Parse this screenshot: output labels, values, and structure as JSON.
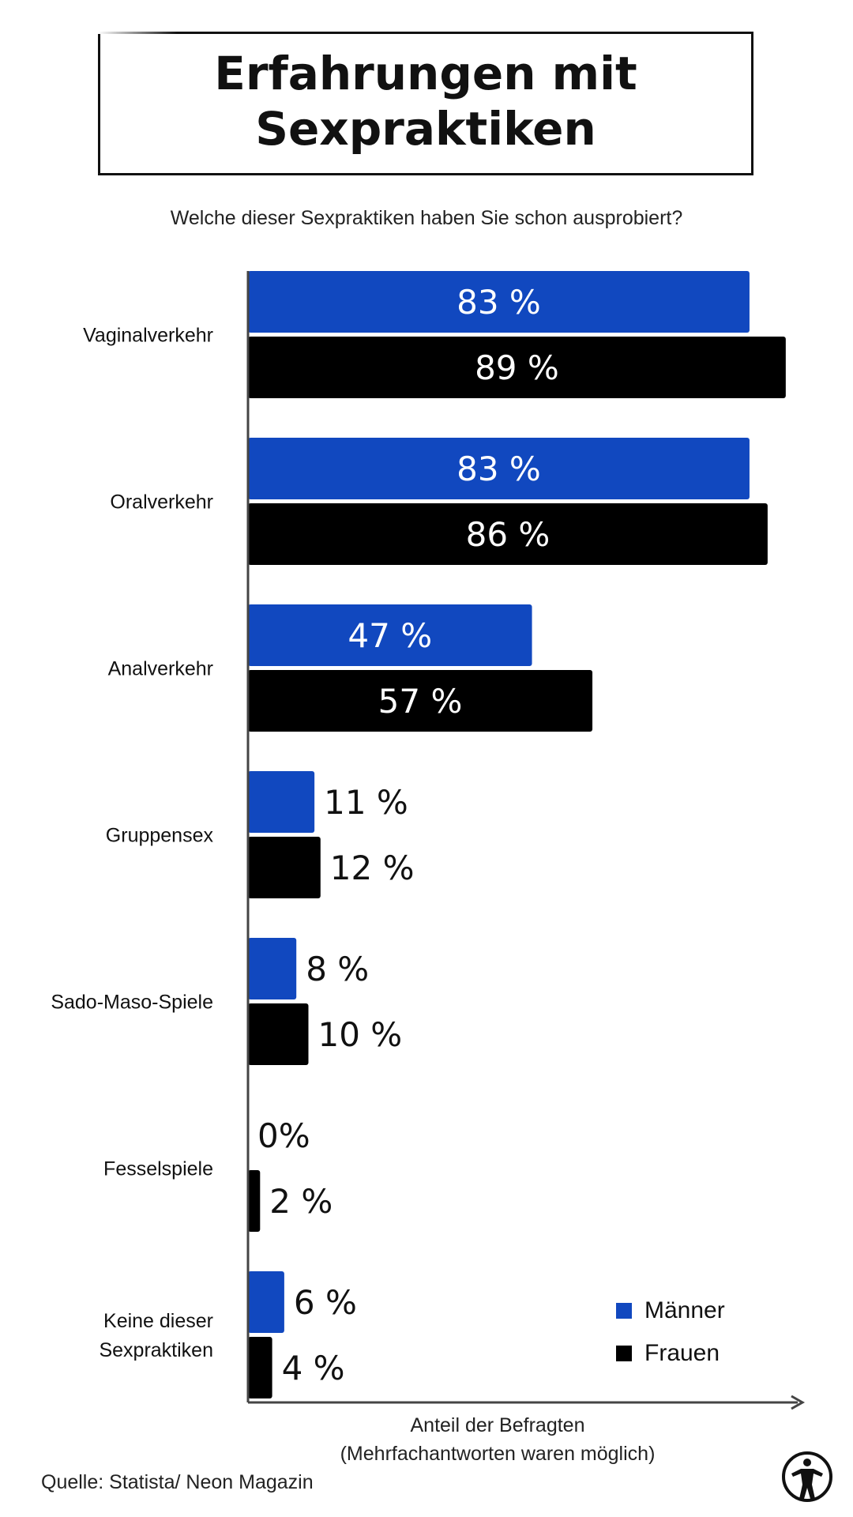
{
  "title_line1": "Erfahrungen mit",
  "title_line2": "Sexpraktiken",
  "subtitle": "Welche dieser Sexpraktiken haben Sie schon ausprobiert?",
  "colors": {
    "maenner": "#1148bf",
    "frauen": "#000000",
    "axis": "#444444"
  },
  "legend": {
    "maenner": "Männer",
    "frauen": "Frauen"
  },
  "axis_caption_line1": "Anteil der Befragten",
  "axis_caption_line2": "(Mehrfachantworten waren möglich)",
  "source": "Quelle: Statista/ Neon Magazin",
  "logo_icon": "circular-figure-logo-icon",
  "chart_data": {
    "type": "bar",
    "orientation": "horizontal",
    "categories": [
      "Vaginalverkehr",
      "Oralverkehr",
      "Analverkehr",
      "Gruppensex",
      "Sado-Maso-Spiele",
      "Fesselspiele",
      "Keine dieser Sexpraktiken"
    ],
    "series": [
      {
        "name": "Männer",
        "values": [
          83,
          83,
          47,
          11,
          8,
          0,
          6
        ],
        "labels": [
          "83 %",
          "83 %",
          "47 %",
          "11 %",
          "8 %",
          "0%",
          "6 %"
        ]
      },
      {
        "name": "Frauen",
        "values": [
          89,
          86,
          57,
          12,
          10,
          2,
          4
        ],
        "labels": [
          "89 %",
          "86 %",
          "57 %",
          "12 %",
          "10 %",
          "2 %",
          "4 %"
        ]
      }
    ],
    "xlabel": "Anteil der Befragten",
    "xlim": [
      0,
      90
    ],
    "legend_position": "bottom-right",
    "grid": false
  }
}
